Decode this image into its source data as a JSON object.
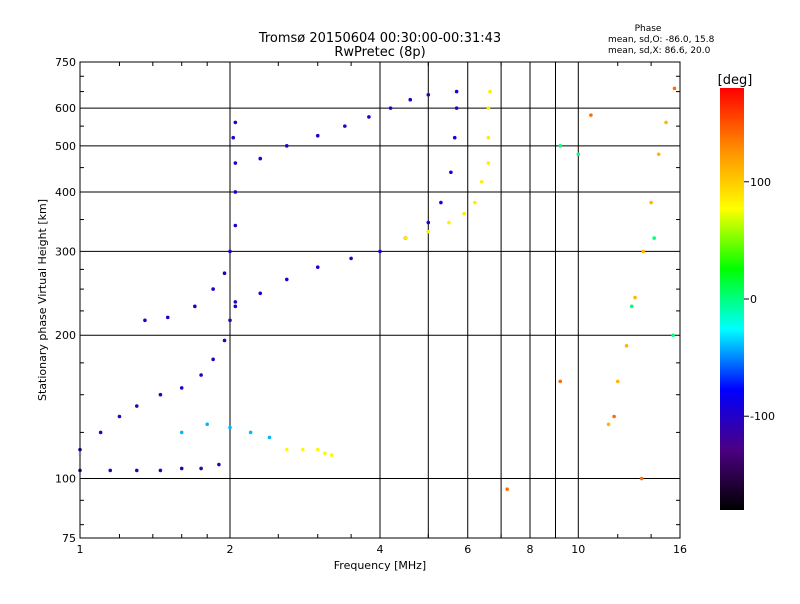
{
  "header": {
    "title_line1": "Tromsø 20150604 00:30:00-00:31:43",
    "title_line2": "RwPretec (8p)",
    "phase_title": "Phase",
    "phase_line1": "mean, sd,O: -86.0, 15.8",
    "phase_line2": "mean, sd,X:  86.6, 20.0"
  },
  "colorbar": {
    "label": "[deg]",
    "ticks": [
      "100",
      "0",
      "-100"
    ],
    "colors": [
      "#000000",
      "#4b0082",
      "#0000ff",
      "#00ffff",
      "#00ff00",
      "#ffff00",
      "#ff8c00",
      "#ff0000"
    ]
  },
  "chart_data": {
    "type": "scatter",
    "xlabel": "Frequency [MHz]",
    "ylabel": "Stationary phase Virtual Height [km]",
    "x_scale": "log",
    "y_scale": "log",
    "xlim": [
      1,
      16
    ],
    "ylim": [
      75,
      750
    ],
    "xticks": [
      "1",
      "2",
      "4",
      "6",
      "8",
      "10",
      "16"
    ],
    "yticks": [
      "750",
      "600",
      "500",
      "400",
      "300",
      "200",
      "100",
      "75"
    ],
    "grid": true,
    "color_range_deg": [
      -180,
      180
    ],
    "traces": [
      {
        "name": "",
        "phase_deg": -110,
        "points": [
          [
            1.0,
            104
          ],
          [
            1.15,
            104
          ],
          [
            1.3,
            104
          ],
          [
            1.45,
            104
          ],
          [
            1.6,
            105
          ],
          [
            1.75,
            105
          ],
          [
            1.9,
            107
          ]
        ]
      },
      {
        "name": "",
        "phase_deg": -105,
        "points": [
          [
            1.0,
            115
          ],
          [
            1.1,
            125
          ],
          [
            1.2,
            135
          ],
          [
            1.3,
            142
          ],
          [
            1.45,
            150
          ],
          [
            1.6,
            155
          ],
          [
            1.75,
            165
          ],
          [
            1.85,
            178
          ],
          [
            1.95,
            195
          ],
          [
            2.0,
            215
          ],
          [
            2.05,
            235
          ]
        ]
      },
      {
        "name": "",
        "phase_deg": -100,
        "points": [
          [
            1.35,
            215
          ],
          [
            1.5,
            218
          ],
          [
            1.7,
            230
          ],
          [
            1.85,
            250
          ],
          [
            1.95,
            270
          ],
          [
            2.0,
            300
          ],
          [
            2.05,
            340
          ],
          [
            2.05,
            400
          ],
          [
            2.05,
            460
          ],
          [
            2.03,
            520
          ],
          [
            2.05,
            560
          ]
        ]
      },
      {
        "name": "",
        "phase_deg": -95,
        "points": [
          [
            2.05,
            230
          ],
          [
            2.3,
            245
          ],
          [
            2.6,
            262
          ],
          [
            3.0,
            278
          ],
          [
            3.5,
            290
          ],
          [
            4.0,
            300
          ],
          [
            4.5,
            320
          ],
          [
            5.0,
            345
          ],
          [
            5.3,
            380
          ],
          [
            5.55,
            440
          ],
          [
            5.65,
            520
          ],
          [
            5.7,
            600
          ],
          [
            5.7,
            650
          ]
        ]
      },
      {
        "name": "",
        "phase_deg": -100,
        "points": [
          [
            2.3,
            470
          ],
          [
            2.6,
            500
          ],
          [
            3.0,
            525
          ],
          [
            3.4,
            550
          ],
          [
            3.8,
            575
          ],
          [
            4.2,
            600
          ],
          [
            4.6,
            625
          ],
          [
            5.0,
            640
          ]
        ]
      },
      {
        "name": "",
        "phase_deg": 85,
        "points": [
          [
            4.5,
            320
          ],
          [
            5.0,
            330
          ],
          [
            5.5,
            345
          ],
          [
            5.9,
            360
          ],
          [
            6.2,
            380
          ],
          [
            6.4,
            420
          ],
          [
            6.6,
            460
          ],
          [
            6.6,
            520
          ],
          [
            6.6,
            600
          ],
          [
            6.65,
            650
          ]
        ]
      },
      {
        "name": "",
        "phase_deg": 80,
        "points": [
          [
            2.6,
            115
          ],
          [
            2.8,
            115
          ],
          [
            3.0,
            115
          ],
          [
            3.1,
            113
          ],
          [
            3.2,
            112
          ]
        ]
      },
      {
        "name": "",
        "phase_deg": -40,
        "points": [
          [
            1.6,
            125
          ],
          [
            1.8,
            130
          ],
          [
            2.0,
            128
          ],
          [
            2.2,
            125
          ],
          [
            2.4,
            122
          ]
        ]
      },
      {
        "name": "",
        "phase_deg": 110,
        "points": [
          [
            11.5,
            130
          ],
          [
            12.0,
            160
          ],
          [
            12.5,
            190
          ],
          [
            13.0,
            240
          ],
          [
            13.5,
            300
          ],
          [
            14.0,
            380
          ],
          [
            14.5,
            480
          ],
          [
            15.0,
            560
          ]
        ]
      },
      {
        "name": "",
        "phase_deg": 0,
        "points": [
          [
            9.2,
            500
          ],
          [
            10.0,
            480
          ],
          [
            12.8,
            230
          ],
          [
            14.2,
            320
          ],
          [
            15.5,
            200
          ]
        ]
      },
      {
        "name": "",
        "phase_deg": 140,
        "points": [
          [
            7.2,
            95
          ],
          [
            9.2,
            160
          ],
          [
            11.8,
            135
          ],
          [
            13.4,
            100
          ],
          [
            15.6,
            660
          ],
          [
            10.6,
            580
          ]
        ]
      }
    ]
  }
}
